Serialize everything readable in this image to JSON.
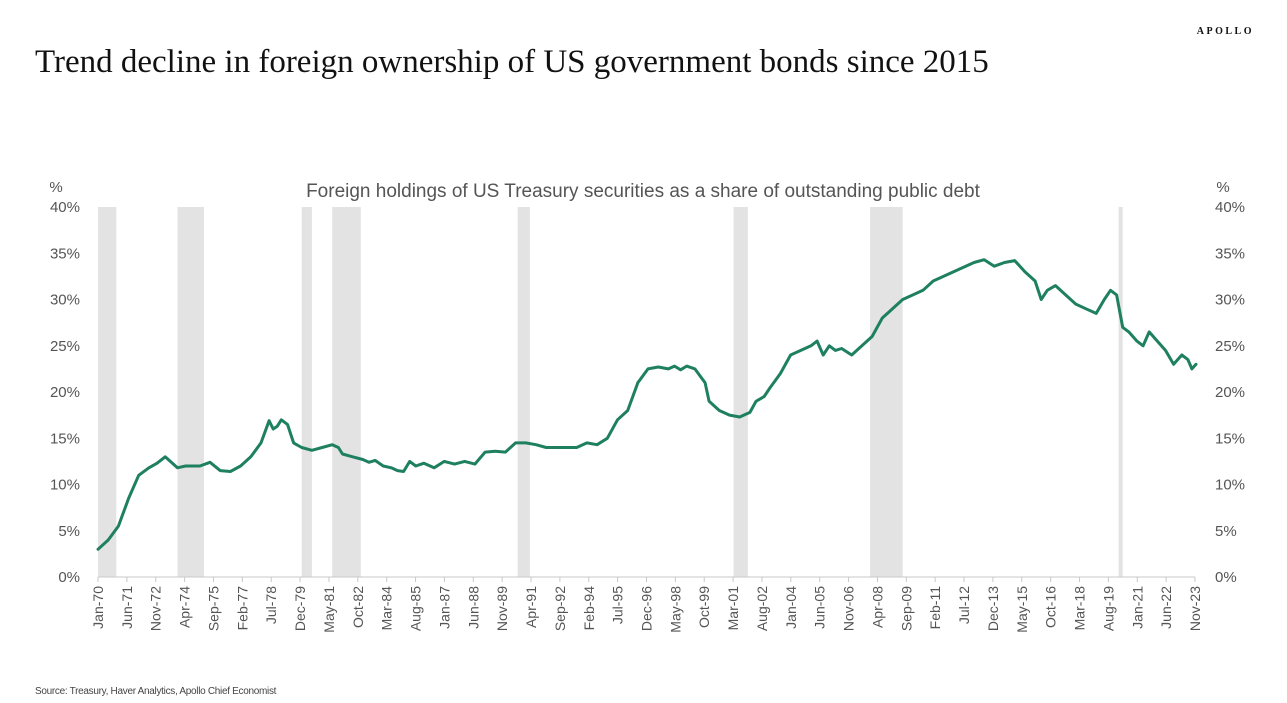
{
  "brand": "APOLLO",
  "title": "Trend decline in foreign ownership of US government bonds since 2015",
  "source": "Source: Treasury, Haver Analytics, Apollo Chief Economist",
  "colors": {
    "line": "#1e8060",
    "recession": "#e3e3e3",
    "axis": "#cccccc",
    "text": "#555555"
  },
  "chart_data": {
    "type": "line",
    "title": "Foreign holdings of US Treasury securities as a share of outstanding public debt",
    "ylabel_left": "%",
    "ylabel_right": "%",
    "ylim": [
      0,
      40
    ],
    "yticks": [
      "0%",
      "5%",
      "10%",
      "15%",
      "20%",
      "25%",
      "30%",
      "35%",
      "40%"
    ],
    "xlim": [
      "Jan-70",
      "Nov-23"
    ],
    "xticks": [
      "Jan-70",
      "Jun-71",
      "Nov-72",
      "Apr-74",
      "Sep-75",
      "Feb-77",
      "Jul-78",
      "Dec-79",
      "May-81",
      "Oct-82",
      "Mar-84",
      "Aug-85",
      "Jan-87",
      "Jun-88",
      "Nov-89",
      "Apr-91",
      "Sep-92",
      "Feb-94",
      "Jul-95",
      "Dec-96",
      "May-98",
      "Oct-99",
      "Mar-01",
      "Aug-02",
      "Jan-04",
      "Jun-05",
      "Nov-06",
      "Apr-08",
      "Sep-09",
      "Feb-11",
      "Jul-12",
      "Dec-13",
      "May-15",
      "Oct-16",
      "Mar-18",
      "Aug-19",
      "Jan-21",
      "Jun-22",
      "Nov-23"
    ],
    "recessions": [
      [
        1970.0,
        1970.9
      ],
      [
        1973.9,
        1975.2
      ],
      [
        1980.0,
        1980.5
      ],
      [
        1981.5,
        1982.9
      ],
      [
        1990.6,
        1991.2
      ],
      [
        2001.2,
        2001.9
      ],
      [
        2007.9,
        2009.5
      ],
      [
        2020.1,
        2020.3
      ]
    ],
    "series": [
      {
        "name": "Foreign holdings share of public debt",
        "x": [
          1970.0,
          1970.5,
          1971.0,
          1971.5,
          1972.0,
          1972.5,
          1972.9,
          1973.3,
          1973.9,
          1974.3,
          1975.0,
          1975.5,
          1976.0,
          1976.5,
          1977.0,
          1977.5,
          1978.0,
          1978.4,
          1978.6,
          1978.8,
          1979.0,
          1979.3,
          1979.6,
          1980.0,
          1980.5,
          1981.0,
          1981.5,
          1981.8,
          1982.0,
          1982.5,
          1983.0,
          1983.3,
          1983.6,
          1984.0,
          1984.4,
          1984.7,
          1985.0,
          1985.3,
          1985.6,
          1986.0,
          1986.5,
          1987.0,
          1987.5,
          1988.0,
          1988.5,
          1989.0,
          1989.5,
          1990.0,
          1990.5,
          1991.0,
          1991.5,
          1992.0,
          1992.5,
          1993.0,
          1993.5,
          1994.0,
          1994.5,
          1995.0,
          1995.5,
          1996.0,
          1996.5,
          1997.0,
          1997.5,
          1998.0,
          1998.3,
          1998.6,
          1998.9,
          1999.3,
          1999.8,
          2000.0,
          2000.5,
          2001.0,
          2001.5,
          2002.0,
          2002.3,
          2002.7,
          2003.0,
          2003.5,
          2004.0,
          2004.5,
          2005.0,
          2005.3,
          2005.6,
          2005.9,
          2006.2,
          2006.5,
          2007.0,
          2007.5,
          2008.0,
          2008.5,
          2009.0,
          2009.5,
          2010.0,
          2010.5,
          2011.0,
          2011.5,
          2012.0,
          2012.5,
          2013.0,
          2013.5,
          2014.0,
          2014.5,
          2015.0,
          2015.5,
          2016.0,
          2016.3,
          2016.6,
          2017.0,
          2017.5,
          2018.0,
          2018.5,
          2019.0,
          2019.4,
          2019.7,
          2020.0,
          2020.3,
          2020.6,
          2021.0,
          2021.3,
          2021.6,
          2022.0,
          2022.4,
          2022.8,
          2023.2,
          2023.5,
          2023.7,
          2023.9
        ],
        "y": [
          3.0,
          4.0,
          5.5,
          8.5,
          11.0,
          11.8,
          12.3,
          13.0,
          11.8,
          12.0,
          12.0,
          12.4,
          11.5,
          11.4,
          12.0,
          13.0,
          14.5,
          16.9,
          16.0,
          16.3,
          17.0,
          16.5,
          14.5,
          14.0,
          13.7,
          14.0,
          14.3,
          14.0,
          13.3,
          13.0,
          12.7,
          12.4,
          12.6,
          12.0,
          11.8,
          11.5,
          11.4,
          12.5,
          12.0,
          12.3,
          11.8,
          12.5,
          12.2,
          12.5,
          12.2,
          13.5,
          13.6,
          13.5,
          14.5,
          14.5,
          14.3,
          14.0,
          14.0,
          14.0,
          14.0,
          14.5,
          14.3,
          15.0,
          17.0,
          18.0,
          21.0,
          22.5,
          22.7,
          22.5,
          22.8,
          22.4,
          22.8,
          22.5,
          21.0,
          19.0,
          18.0,
          17.5,
          17.3,
          17.8,
          19.0,
          19.5,
          20.5,
          22.0,
          24.0,
          24.5,
          25.0,
          25.5,
          24.0,
          25.0,
          24.5,
          24.7,
          24.0,
          25.0,
          26.0,
          28.0,
          29.0,
          30.0,
          30.5,
          31.0,
          32.0,
          32.5,
          33.0,
          33.5,
          34.0,
          34.3,
          33.6,
          34.0,
          34.2,
          33.0,
          32.0,
          30.0,
          31.0,
          31.5,
          30.5,
          29.5,
          29.0,
          28.5,
          30.0,
          31.0,
          30.5,
          27.0,
          26.5,
          25.5,
          25.0,
          26.5,
          25.5,
          24.5,
          23.0,
          24.0,
          23.5,
          22.5,
          23.0
        ]
      }
    ]
  }
}
